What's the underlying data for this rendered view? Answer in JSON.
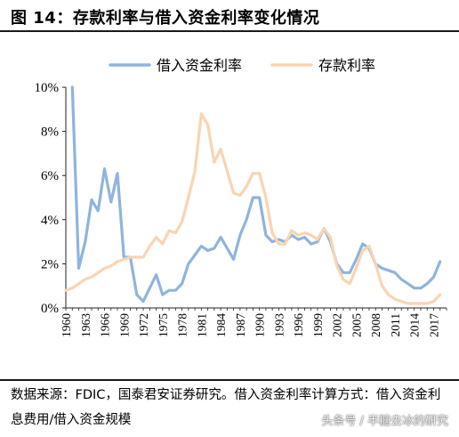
{
  "header": {
    "title": "图 14：存款利率与借入资金利率变化情况"
  },
  "footer": {
    "source": "数据来源：FDIC，国泰君安证券研究。借入资金利率计算方式：借入资金利息费用/借入资金规模",
    "watermark": "头条号 / 半糖去冰的研究"
  },
  "chart_data": {
    "type": "line",
    "ylim": [
      0,
      10
    ],
    "yticks": [
      "0%",
      "2%",
      "4%",
      "6%",
      "8%",
      "10%"
    ],
    "xlim": [
      1960,
      2019
    ],
    "xtick_labels": [
      "1960",
      "1963",
      "1966",
      "1969",
      "1972",
      "1975",
      "1978",
      "1981",
      "1984",
      "1987",
      "1990",
      "1993",
      "1996",
      "1999",
      "2002",
      "2005",
      "2008",
      "2011",
      "2014",
      "2017"
    ],
    "legend_position": "top",
    "grid": false,
    "series": [
      {
        "name": "借入资金利率",
        "color": "#8FB4DD",
        "points": [
          [
            1961,
            10.0
          ],
          [
            1962,
            1.8
          ],
          [
            1963,
            3.0
          ],
          [
            1964,
            4.9
          ],
          [
            1965,
            4.4
          ],
          [
            1966,
            6.3
          ],
          [
            1967,
            4.8
          ],
          [
            1968,
            6.1
          ],
          [
            1969,
            2.3
          ],
          [
            1970,
            2.3
          ],
          [
            1971,
            0.6
          ],
          [
            1972,
            0.3
          ],
          [
            1973,
            0.9
          ],
          [
            1974,
            1.5
          ],
          [
            1975,
            0.6
          ],
          [
            1976,
            0.8
          ],
          [
            1977,
            0.8
          ],
          [
            1978,
            1.1
          ],
          [
            1979,
            2.0
          ],
          [
            1980,
            2.4
          ],
          [
            1981,
            2.8
          ],
          [
            1982,
            2.6
          ],
          [
            1983,
            2.7
          ],
          [
            1984,
            3.2
          ],
          [
            1985,
            2.7
          ],
          [
            1986,
            2.2
          ],
          [
            1987,
            3.3
          ],
          [
            1988,
            4.0
          ],
          [
            1989,
            5.0
          ],
          [
            1990,
            5.0
          ],
          [
            1991,
            3.3
          ],
          [
            1992,
            3.0
          ],
          [
            1993,
            3.1
          ],
          [
            1994,
            3.0
          ],
          [
            1995,
            3.3
          ],
          [
            1996,
            3.1
          ],
          [
            1997,
            3.2
          ],
          [
            1998,
            2.9
          ],
          [
            1999,
            3.0
          ],
          [
            2000,
            3.6
          ],
          [
            2001,
            3.0
          ],
          [
            2002,
            2.0
          ],
          [
            2003,
            1.6
          ],
          [
            2004,
            1.6
          ],
          [
            2005,
            2.2
          ],
          [
            2006,
            2.9
          ],
          [
            2007,
            2.7
          ],
          [
            2008,
            2.0
          ],
          [
            2009,
            1.8
          ],
          [
            2010,
            1.7
          ],
          [
            2011,
            1.6
          ],
          [
            2012,
            1.3
          ],
          [
            2013,
            1.1
          ],
          [
            2014,
            0.9
          ],
          [
            2015,
            0.9
          ],
          [
            2016,
            1.1
          ],
          [
            2017,
            1.4
          ],
          [
            2018,
            2.1
          ]
        ]
      },
      {
        "name": "存款利率",
        "color": "#F8D5B1",
        "points": [
          [
            1960,
            0.8
          ],
          [
            1961,
            0.9
          ],
          [
            1962,
            1.1
          ],
          [
            1963,
            1.3
          ],
          [
            1964,
            1.4
          ],
          [
            1965,
            1.6
          ],
          [
            1966,
            1.8
          ],
          [
            1967,
            1.9
          ],
          [
            1968,
            2.1
          ],
          [
            1969,
            2.2
          ],
          [
            1970,
            2.3
          ],
          [
            1971,
            2.3
          ],
          [
            1972,
            2.3
          ],
          [
            1973,
            2.8
          ],
          [
            1974,
            3.2
          ],
          [
            1975,
            2.9
          ],
          [
            1976,
            3.5
          ],
          [
            1977,
            3.4
          ],
          [
            1978,
            3.9
          ],
          [
            1979,
            5.0
          ],
          [
            1980,
            6.2
          ],
          [
            1981,
            8.8
          ],
          [
            1982,
            8.3
          ],
          [
            1983,
            6.6
          ],
          [
            1984,
            7.2
          ],
          [
            1985,
            6.2
          ],
          [
            1986,
            5.2
          ],
          [
            1987,
            5.1
          ],
          [
            1988,
            5.5
          ],
          [
            1989,
            6.1
          ],
          [
            1990,
            6.1
          ],
          [
            1991,
            5.0
          ],
          [
            1992,
            3.4
          ],
          [
            1993,
            2.9
          ],
          [
            1994,
            2.9
          ],
          [
            1995,
            3.5
          ],
          [
            1996,
            3.3
          ],
          [
            1997,
            3.4
          ],
          [
            1998,
            3.3
          ],
          [
            1999,
            3.1
          ],
          [
            2000,
            3.6
          ],
          [
            2001,
            3.2
          ],
          [
            2002,
            1.9
          ],
          [
            2003,
            1.3
          ],
          [
            2004,
            1.1
          ],
          [
            2005,
            1.8
          ],
          [
            2006,
            2.6
          ],
          [
            2007,
            2.8
          ],
          [
            2008,
            2.0
          ],
          [
            2009,
            1.0
          ],
          [
            2010,
            0.6
          ],
          [
            2011,
            0.4
          ],
          [
            2012,
            0.3
          ],
          [
            2013,
            0.2
          ],
          [
            2014,
            0.2
          ],
          [
            2015,
            0.2
          ],
          [
            2016,
            0.2
          ],
          [
            2017,
            0.3
          ],
          [
            2018,
            0.6
          ]
        ]
      }
    ]
  }
}
